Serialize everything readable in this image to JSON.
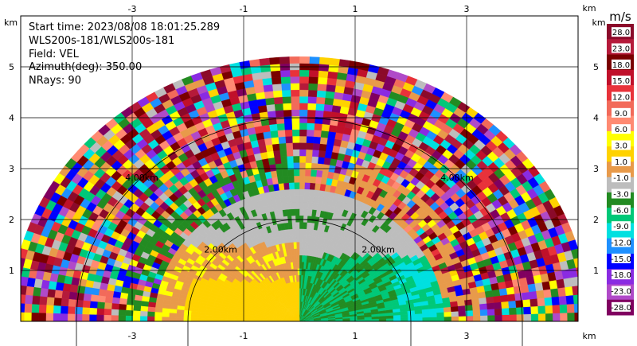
{
  "info": {
    "start_time": "Start time: 2023/08/08 18:01:25.289",
    "instrument": "WLS200s-181/WLS200s-181",
    "field": "Field: VEL",
    "azimuth": "Azimuth(deg): 350.00",
    "nrays": "NRays: 90"
  },
  "chart_data": {
    "type": "heatmap",
    "title": "",
    "projection": "polar-sector (RHI-style, upper half-plane)",
    "xlabel": "km",
    "ylabel": "km",
    "xlim": [
      -5,
      5
    ],
    "ylim": [
      0,
      6
    ],
    "grid": true,
    "x_ticks": [
      "-3",
      "-1",
      "1",
      "3"
    ],
    "y_ticks": [
      "1",
      "2",
      "3",
      "4",
      "5"
    ],
    "axis_unit_label": "km",
    "range_rings": [
      {
        "label": "2.00km",
        "radius_km": 2
      },
      {
        "label": "4.00km",
        "radius_km": 4
      }
    ],
    "max_range_km": 5.2,
    "regions": [
      {
        "desc": "inner gray near-zero region",
        "color_value": "-1.0 to 1.0"
      },
      {
        "desc": "lower-left yellow/orange returns",
        "color_value": "3.0 to 6.0"
      },
      {
        "desc": "lower-right green/teal returns",
        "color_value": "-3.0 to -6.0"
      },
      {
        "desc": "outer noisy multicolour ring",
        "color_value": "noise"
      }
    ],
    "colorbar": {
      "unit": "m/s",
      "labels": [
        "28.0",
        "23.0",
        "18.0",
        "15.0",
        "12.0",
        "9.0",
        "6.0",
        "3.0",
        "1.0",
        "-1.0",
        "-3.0",
        "-6.0",
        "-9.0",
        "-12.0",
        "-15.0",
        "-18.0",
        "-23.0",
        "-28.0"
      ],
      "colors": [
        "#8b0a2a",
        "#b51a3a",
        "#7a0000",
        "#c0102a",
        "#e8323a",
        "#f26a5a",
        "#ff8a72",
        "#ffff00",
        "#ffd200",
        "#e89a4a",
        "#bdbdbd",
        "#238b22",
        "#00c878",
        "#00e0e0",
        "#1e90ff",
        "#0000ff",
        "#8a2be2",
        "#b04ac8",
        "#800060"
      ]
    }
  }
}
